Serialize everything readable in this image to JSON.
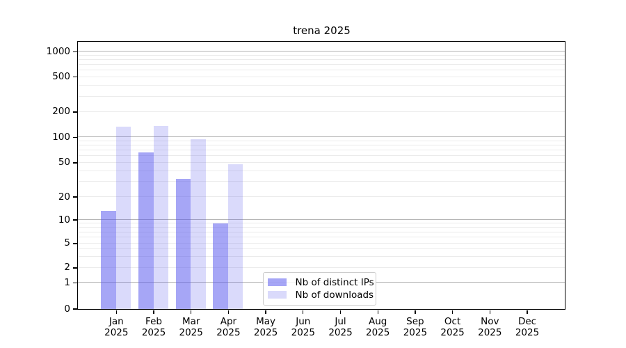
{
  "chart_data": {
    "type": "bar",
    "title": "trena 2025",
    "xlabel": "",
    "ylabel": "",
    "categories": [
      "Jan",
      "Feb",
      "Mar",
      "Apr",
      "May",
      "Jun",
      "Jul",
      "Aug",
      "Sep",
      "Oct",
      "Nov",
      "Dec"
    ],
    "category_sublabel": "2025",
    "series": [
      {
        "name": "Nb of distinct IPs",
        "color": "rgba(85,85,238,0.52)",
        "values": [
          13,
          66,
          32,
          9,
          0,
          0,
          0,
          0,
          0,
          0,
          0,
          0
        ]
      },
      {
        "name": "Nb of downloads",
        "color": "rgba(85,85,238,0.22)",
        "values": [
          133,
          135,
          95,
          48,
          0,
          0,
          0,
          0,
          0,
          0,
          0,
          0
        ]
      }
    ],
    "y_axis": {
      "scale": "symlog",
      "ticks": [
        0,
        1,
        2,
        5,
        10,
        20,
        50,
        100,
        200,
        500,
        1000
      ],
      "major_gridline_values": [
        1,
        10,
        100,
        1000
      ],
      "minor_gridline_values": [
        2,
        3,
        4,
        5,
        6,
        7,
        8,
        9,
        20,
        30,
        40,
        50,
        60,
        70,
        80,
        90,
        200,
        300,
        400,
        500,
        600,
        700,
        800,
        900
      ],
      "anchors": {
        "0": 0,
        "1": 0.098,
        "2": 0.154,
        "5": 0.245,
        "10": 0.333,
        "20": 0.419,
        "50": 0.547,
        "100": 0.642,
        "200": 0.737,
        "500": 0.868,
        "1000": 0.963
      }
    },
    "grid": true,
    "legend": {
      "position": "lower-center"
    },
    "colors": {
      "major_grid": "#b3b3b3",
      "minor_grid": "#ebebeb",
      "axis": "#000000",
      "text": "#000000",
      "background": "#ffffff"
    }
  }
}
